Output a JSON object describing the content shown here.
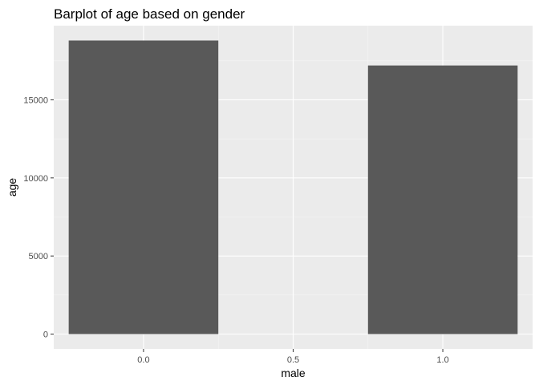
{
  "chart_data": {
    "type": "bar",
    "title": "Barplot of age based on gender",
    "xlabel": "male",
    "ylabel": "age",
    "x": [
      0.0,
      1.0
    ],
    "values": [
      18800,
      17200
    ],
    "bar_width": 0.5,
    "xlim": [
      -0.3,
      1.3
    ],
    "ylim": [
      -950,
      19750
    ],
    "x_ticks": [
      0.0,
      0.5,
      1.0
    ],
    "x_tick_labels": [
      "0.0",
      "0.5",
      "1.0"
    ],
    "y_ticks": [
      0,
      5000,
      10000,
      15000
    ],
    "y_tick_labels": [
      "0",
      "5000",
      "10000",
      "15000"
    ],
    "grid": true,
    "legend": "none",
    "colors": {
      "bar": "#595959",
      "panel": "#ebebeb",
      "grid_major": "#ffffff",
      "grid_minor": "#f5f5f5",
      "tick": "#333333"
    }
  }
}
